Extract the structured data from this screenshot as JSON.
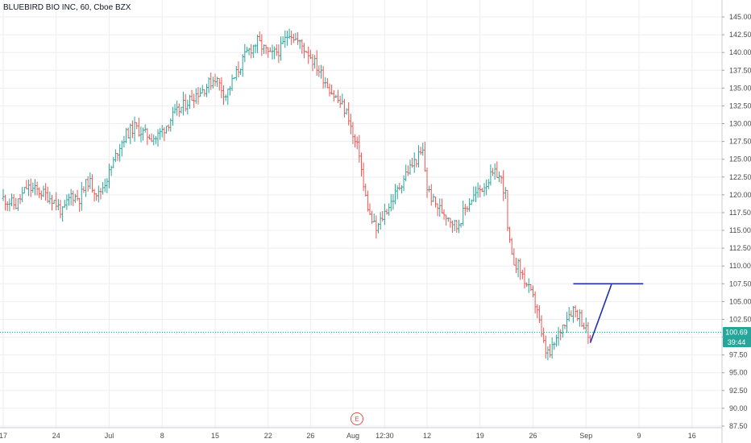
{
  "header": {
    "title": "BLUEBIRD BIO INC, 60, Cboe BZX"
  },
  "chart_data": {
    "type": "ohlc",
    "y_range": [
      87.5,
      145.0
    ],
    "y_ticks": [
      145.0,
      142.5,
      140.0,
      137.5,
      135.0,
      132.5,
      130.0,
      127.5,
      125.0,
      122.5,
      120.0,
      117.5,
      115.0,
      112.5,
      110.0,
      107.5,
      105.0,
      102.5,
      100.0,
      97.5,
      95.0,
      92.5,
      90.0,
      87.5
    ],
    "y_tick_labels": [
      "145.00",
      "142.50",
      "140.00",
      "137.50",
      "135.00",
      "132.50",
      "130.00",
      "127.50",
      "125.00",
      "122.50",
      "120.00",
      "117.50",
      "115.00",
      "112.50",
      "110.00",
      "107.50",
      "105.00",
      "102.50",
      "100.00",
      "97.50",
      "95.00",
      "92.50",
      "90.00",
      "87.50"
    ],
    "x_tick_labels": [
      "17",
      "24",
      "Jul",
      "8",
      "15",
      "22",
      "26",
      "Aug",
      "12:30",
      "12",
      "19",
      "26",
      "Sep",
      "9",
      "16"
    ],
    "x_tick_index": [
      0,
      25,
      50,
      75,
      100,
      125,
      145,
      165,
      180,
      200,
      225,
      250,
      275,
      300,
      325
    ],
    "current_price": 100.69,
    "current_price_label": "100.69",
    "countdown_label": "39:44",
    "earnings_marker": "E",
    "colors": {
      "up": "#26a69a",
      "down": "#ef5350",
      "price_line": "#26a69a",
      "drawing": "#1f2fb5",
      "earnings": "#e0504a",
      "grid": "#eceef2"
    },
    "drawing": {
      "segments": [
        {
          "from": [
            269,
            107.5
          ],
          "to": [
            302,
            107.5
          ]
        },
        {
          "from": [
            277,
            99.2
          ],
          "to": [
            287,
            107.4
          ]
        }
      ]
    },
    "path": [
      [
        0,
        119.5
      ],
      [
        6,
        118.5
      ],
      [
        11,
        121
      ],
      [
        17,
        120.5
      ],
      [
        23,
        119.5
      ],
      [
        28,
        117.5
      ],
      [
        32,
        120
      ],
      [
        36,
        119.5
      ],
      [
        40,
        122
      ],
      [
        45,
        120
      ],
      [
        50,
        123
      ],
      [
        55,
        127
      ],
      [
        58,
        128.5
      ],
      [
        62,
        129.5
      ],
      [
        67,
        128.5
      ],
      [
        72,
        128
      ],
      [
        75,
        129
      ],
      [
        80,
        131
      ],
      [
        85,
        132.5
      ],
      [
        90,
        134
      ],
      [
        95,
        135
      ],
      [
        100,
        136.5
      ],
      [
        105,
        134
      ],
      [
        110,
        137
      ],
      [
        115,
        140
      ],
      [
        120,
        141.5
      ],
      [
        126,
        139.5
      ],
      [
        131,
        140.5
      ],
      [
        135,
        143
      ],
      [
        139,
        141.5
      ],
      [
        144,
        140
      ],
      [
        148,
        138
      ],
      [
        152,
        136
      ],
      [
        156,
        134
      ],
      [
        160,
        132.5
      ],
      [
        163,
        131
      ],
      [
        165,
        128
      ],
      [
        168,
        126
      ],
      [
        170,
        121
      ],
      [
        173,
        117
      ],
      [
        176,
        115
      ],
      [
        180,
        117.5
      ],
      [
        185,
        120
      ],
      [
        190,
        123
      ],
      [
        195,
        125
      ],
      [
        198,
        126
      ],
      [
        200,
        121
      ],
      [
        203,
        119
      ],
      [
        206,
        118
      ],
      [
        210,
        117
      ],
      [
        214,
        115.5
      ],
      [
        218,
        118
      ],
      [
        221,
        119.5
      ],
      [
        226,
        121
      ],
      [
        230,
        122.5
      ],
      [
        233,
        123
      ],
      [
        235,
        122
      ],
      [
        237,
        120
      ],
      [
        238,
        115
      ],
      [
        240,
        111
      ],
      [
        243,
        110
      ],
      [
        246,
        108
      ],
      [
        249,
        106
      ],
      [
        252,
        104
      ],
      [
        254,
        100
      ],
      [
        256,
        98
      ],
      [
        258,
        97.5
      ],
      [
        260,
        99
      ],
      [
        263,
        101
      ],
      [
        266,
        103
      ],
      [
        269,
        104
      ],
      [
        272,
        103
      ],
      [
        275,
        101
      ],
      [
        277,
        99.5
      ]
    ]
  }
}
